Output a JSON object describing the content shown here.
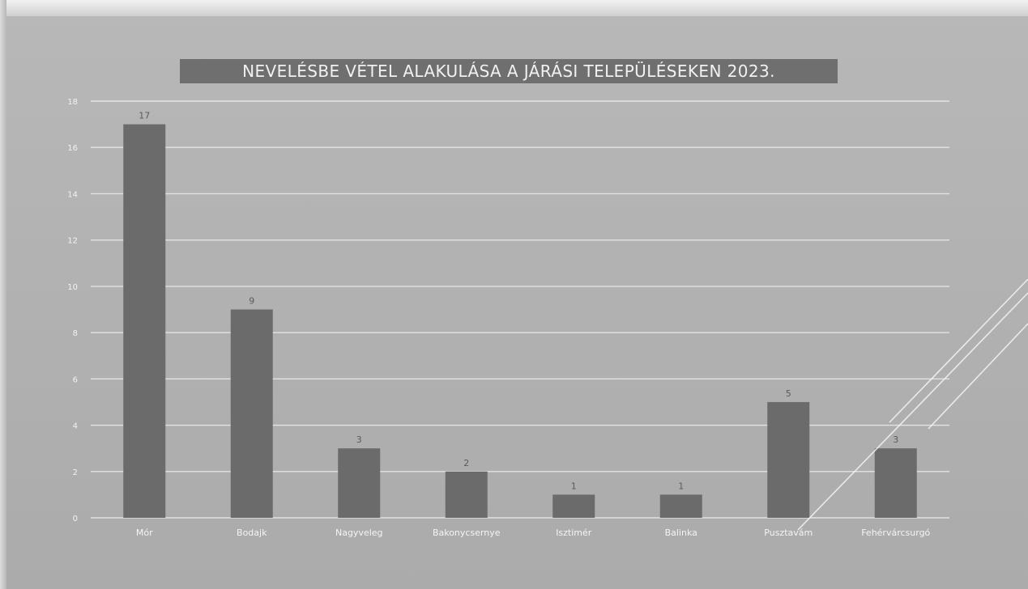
{
  "chart_data": {
    "type": "bar",
    "title": "NEVELÉSBE VÉTEL ALAKULÁSA A JÁRÁSI TELEPÜLÉSEKEN 2023.",
    "xlabel": "",
    "ylabel": "",
    "categories": [
      "Mór",
      "Bodajk",
      "Nagyveleg",
      "Bakonycsernye",
      "Isztimér",
      "Balinka",
      "Pusztavám",
      "Fehérvárcsurgó"
    ],
    "values": [
      17,
      9,
      3,
      2,
      1,
      1,
      5,
      3
    ],
    "data_labels": [
      "17",
      "9",
      "3",
      "2",
      "1",
      "1",
      "5",
      "3"
    ],
    "yticks": [
      "0",
      "2",
      "4",
      "6",
      "8",
      "10",
      "12",
      "14",
      "16",
      "18"
    ],
    "ylim": [
      0,
      18
    ],
    "grid": true,
    "legend": "none",
    "colors": {
      "bar": "#6b6b6b",
      "grid": "#e8e8e8",
      "title_background": "#6f6f6f",
      "title_text": "#f1f1f1"
    }
  }
}
